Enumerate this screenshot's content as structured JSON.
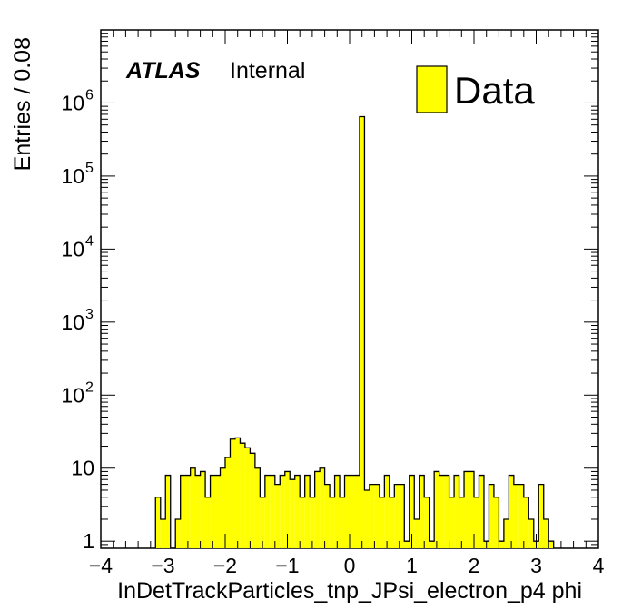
{
  "chart_data": {
    "type": "bar",
    "style": "histogram",
    "xlabel": "InDetTrackParticles_tnp_JPsi_electron_p4 phi",
    "ylabel": "Entries / 0.08",
    "xlim": [
      -4,
      4
    ],
    "ylim": [
      0.8,
      10000000.0
    ],
    "yscale": "log",
    "bin_width": 0.08,
    "x_ticks": [
      {
        "value": -4,
        "label": "−4"
      },
      {
        "value": -3,
        "label": "−3"
      },
      {
        "value": -2,
        "label": "−2"
      },
      {
        "value": -1,
        "label": "−1"
      },
      {
        "value": 0,
        "label": "0"
      },
      {
        "value": 1,
        "label": "1"
      },
      {
        "value": 2,
        "label": "2"
      },
      {
        "value": 3,
        "label": "3"
      },
      {
        "value": 4,
        "label": "4"
      }
    ],
    "y_ticks": [
      {
        "value": 1,
        "base": "1",
        "exp": ""
      },
      {
        "value": 10,
        "base": "10",
        "exp": ""
      },
      {
        "value": 100,
        "base": "10",
        "exp": "2"
      },
      {
        "value": 1000,
        "base": "10",
        "exp": "3"
      },
      {
        "value": 10000,
        "base": "10",
        "exp": "4"
      },
      {
        "value": 100000,
        "base": "10",
        "exp": "5"
      },
      {
        "value": 1000000,
        "base": "10",
        "exp": "6"
      }
    ],
    "atlas_label": "ATLAS",
    "atlas_sublabel": "Internal",
    "legend": {
      "position": "top-right",
      "entries": [
        {
          "name": "Data",
          "color": "#ffff00"
        }
      ]
    },
    "series": [
      {
        "name": "Data",
        "color": "#ffff00",
        "edge_color": "#000000",
        "x_start": -3.12,
        "values": [
          4,
          2,
          8,
          0,
          2,
          8,
          8,
          10,
          8,
          9,
          4,
          8,
          8,
          10,
          14,
          25,
          26,
          22,
          19,
          16,
          10,
          4,
          8,
          8,
          6,
          8,
          9,
          7,
          8,
          4,
          8,
          4,
          9,
          10,
          6,
          4,
          8,
          4,
          8,
          8,
          8,
          650000,
          5,
          6,
          6,
          4,
          8,
          4,
          6,
          6,
          1,
          8,
          2,
          8,
          4,
          1,
          9,
          8,
          8,
          4,
          8,
          4,
          9,
          9,
          4,
          8,
          1,
          6,
          4,
          1,
          2,
          8,
          6,
          6,
          4,
          2,
          1,
          6,
          2,
          1
        ]
      }
    ]
  },
  "colors": {
    "fill": "#ffff00",
    "edge": "#000000",
    "axis": "#000000"
  }
}
